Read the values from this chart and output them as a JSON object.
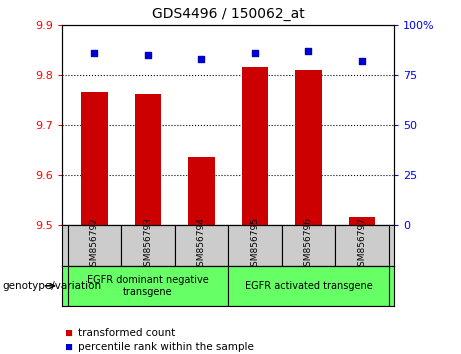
{
  "title": "GDS4496 / 150062_at",
  "categories": [
    "GSM856792",
    "GSM856793",
    "GSM856794",
    "GSM856795",
    "GSM856796",
    "GSM856797"
  ],
  "bar_values": [
    9.765,
    9.762,
    9.635,
    9.815,
    9.81,
    9.515
  ],
  "percentile_values": [
    86,
    85,
    83,
    86,
    87,
    82
  ],
  "ylim_left": [
    9.5,
    9.9
  ],
  "ylim_right": [
    0,
    100
  ],
  "yticks_left": [
    9.5,
    9.6,
    9.7,
    9.8,
    9.9
  ],
  "yticks_right": [
    0,
    25,
    50,
    75,
    100
  ],
  "ytick_right_labels": [
    "0",
    "25",
    "50",
    "75",
    "100%"
  ],
  "bar_color": "#cc0000",
  "dot_color": "#0000cc",
  "grid_color": "#000000",
  "background_color": "#ffffff",
  "plot_bg_color": "#ffffff",
  "group1_label": "EGFR dominant negative\ntransgene",
  "group2_label": "EGFR activated transgene",
  "group1_indices": [
    0,
    1,
    2
  ],
  "group2_indices": [
    3,
    4,
    5
  ],
  "group_bg_color": "#66ff66",
  "sample_bg_color": "#cccccc",
  "legend_bar_label": "transformed count",
  "legend_dot_label": "percentile rank within the sample",
  "xlabel_left": "genotype/variation",
  "bar_width": 0.5
}
